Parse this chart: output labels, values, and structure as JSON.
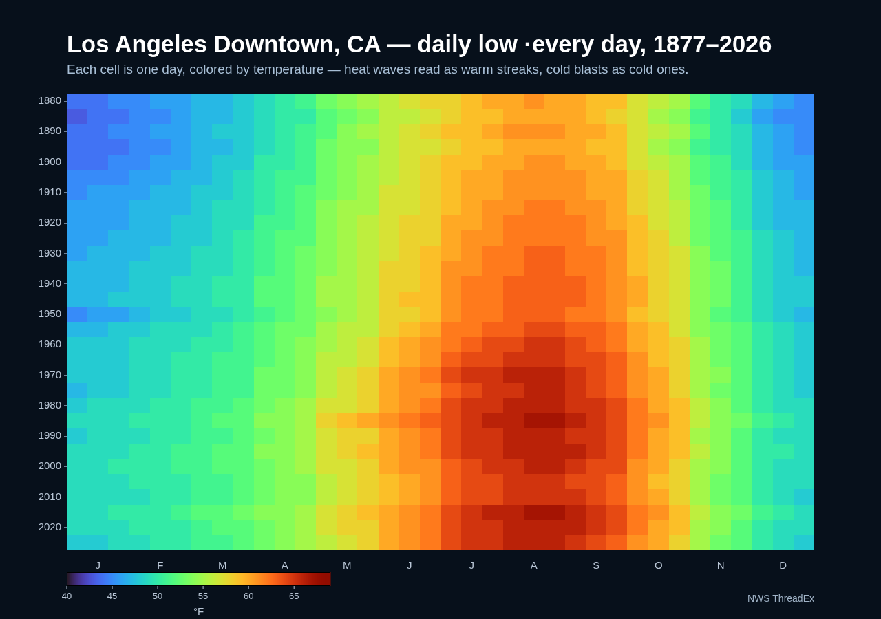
{
  "chart_data": {
    "type": "heatmap",
    "title": "Los Angeles Downtown, CA — daily low ·every day, 1877–2026",
    "subtitle": "Each cell is one day, colored by temperature — heat waves read as warm streaks, cold blasts as cold ones.",
    "categories": [
      null,
      "J",
      null,
      null,
      "F",
      null,
      null,
      "M",
      null,
      null,
      "A",
      null,
      null,
      "M",
      null,
      null,
      "J",
      null,
      null,
      "J",
      null,
      null,
      "A",
      null,
      null,
      "S",
      null,
      null,
      "O",
      null,
      null,
      "N",
      null,
      null,
      "D",
      null
    ],
    "y_categories": [
      "1880",
      null,
      "1890",
      null,
      "1900",
      null,
      "1910",
      null,
      "1920",
      null,
      "1930",
      null,
      "1940",
      null,
      "1950",
      null,
      "1960",
      null,
      "1970",
      null,
      "1980",
      null,
      "1990",
      null,
      "2000",
      null,
      "2010",
      null,
      "2020",
      null
    ],
    "cells": [
      [
        44,
        44,
        45,
        45,
        46,
        46,
        47,
        47,
        48,
        49,
        50,
        51,
        53,
        54,
        55,
        56,
        57,
        58,
        58,
        59,
        60,
        60,
        61,
        60,
        60,
        59,
        59,
        57,
        56,
        55,
        52,
        50,
        49,
        47,
        46,
        45
      ],
      [
        43,
        44,
        44,
        45,
        45,
        46,
        47,
        47,
        48,
        49,
        50,
        50,
        52,
        53,
        54,
        56,
        56,
        57,
        58,
        59,
        59,
        60,
        60,
        60,
        60,
        59,
        58,
        57,
        55,
        54,
        51,
        50,
        48,
        46,
        45,
        45
      ],
      [
        44,
        44,
        45,
        45,
        46,
        46,
        47,
        48,
        48,
        49,
        50,
        51,
        52,
        54,
        55,
        56,
        57,
        58,
        59,
        59,
        60,
        61,
        61,
        61,
        60,
        60,
        59,
        57,
        56,
        55,
        52,
        50,
        49,
        47,
        46,
        45
      ],
      [
        44,
        44,
        44,
        45,
        45,
        46,
        47,
        47,
        48,
        49,
        50,
        51,
        53,
        54,
        54,
        56,
        57,
        57,
        58,
        59,
        59,
        60,
        60,
        60,
        60,
        59,
        59,
        57,
        55,
        54,
        51,
        50,
        49,
        47,
        46,
        45
      ],
      [
        44,
        44,
        45,
        45,
        46,
        46,
        47,
        48,
        48,
        50,
        50,
        51,
        53,
        54,
        55,
        56,
        57,
        58,
        59,
        59,
        60,
        60,
        61,
        61,
        60,
        60,
        59,
        57,
        56,
        55,
        52,
        51,
        49,
        47,
        46,
        46
      ],
      [
        45,
        45,
        45,
        46,
        46,
        47,
        47,
        48,
        49,
        50,
        51,
        51,
        53,
        54,
        55,
        56,
        57,
        58,
        59,
        60,
        60,
        61,
        61,
        61,
        61,
        60,
        60,
        58,
        57,
        55,
        52,
        51,
        50,
        48,
        47,
        46
      ],
      [
        45,
        46,
        46,
        46,
        47,
        47,
        48,
        48,
        49,
        50,
        51,
        52,
        53,
        54,
        55,
        57,
        57,
        58,
        59,
        60,
        60,
        61,
        61,
        61,
        61,
        60,
        60,
        58,
        57,
        55,
        53,
        51,
        50,
        48,
        47,
        46
      ],
      [
        46,
        46,
        46,
        47,
        47,
        47,
        48,
        49,
        49,
        50,
        51,
        52,
        54,
        55,
        55,
        57,
        57,
        58,
        59,
        60,
        61,
        61,
        62,
        62,
        61,
        61,
        60,
        58,
        57,
        56,
        53,
        52,
        50,
        48,
        47,
        47
      ],
      [
        46,
        46,
        46,
        47,
        47,
        48,
        48,
        49,
        49,
        51,
        51,
        52,
        54,
        55,
        56,
        57,
        58,
        58,
        60,
        60,
        61,
        62,
        62,
        62,
        62,
        61,
        60,
        59,
        57,
        56,
        53,
        52,
        50,
        48,
        47,
        47
      ],
      [
        46,
        46,
        47,
        47,
        47,
        48,
        48,
        49,
        50,
        51,
        52,
        52,
        54,
        55,
        56,
        57,
        58,
        58,
        60,
        61,
        61,
        62,
        62,
        62,
        62,
        61,
        61,
        59,
        58,
        56,
        53,
        52,
        51,
        49,
        48,
        47
      ],
      [
        46,
        47,
        47,
        47,
        48,
        48,
        49,
        49,
        50,
        51,
        52,
        53,
        54,
        55,
        56,
        57,
        58,
        59,
        60,
        61,
        62,
        62,
        63,
        63,
        62,
        62,
        61,
        59,
        58,
        57,
        54,
        52,
        51,
        49,
        48,
        47
      ],
      [
        47,
        47,
        47,
        48,
        48,
        48,
        49,
        49,
        50,
        51,
        52,
        53,
        54,
        55,
        56,
        58,
        58,
        59,
        61,
        61,
        62,
        62,
        63,
        63,
        62,
        62,
        61,
        59,
        58,
        57,
        54,
        53,
        51,
        49,
        48,
        47
      ],
      [
        47,
        47,
        47,
        48,
        48,
        49,
        49,
        50,
        50,
        52,
        52,
        53,
        55,
        55,
        56,
        58,
        58,
        59,
        61,
        62,
        62,
        63,
        63,
        63,
        63,
        62,
        61,
        60,
        58,
        57,
        54,
        53,
        51,
        49,
        48,
        48
      ],
      [
        47,
        47,
        48,
        48,
        48,
        49,
        49,
        50,
        50,
        52,
        52,
        53,
        55,
        55,
        56,
        58,
        59,
        59,
        61,
        62,
        62,
        63,
        63,
        63,
        63,
        62,
        61,
        60,
        58,
        57,
        54,
        53,
        51,
        49,
        48,
        48
      ],
      [
        45,
        46,
        46,
        47,
        48,
        48,
        49,
        49,
        50,
        51,
        52,
        53,
        54,
        55,
        56,
        58,
        58,
        59,
        61,
        62,
        62,
        63,
        63,
        63,
        62,
        62,
        61,
        59,
        58,
        57,
        54,
        52,
        51,
        49,
        48,
        47
      ],
      [
        47,
        47,
        48,
        48,
        49,
        49,
        49,
        50,
        51,
        52,
        53,
        53,
        55,
        56,
        56,
        58,
        59,
        60,
        62,
        62,
        63,
        63,
        64,
        64,
        63,
        63,
        62,
        60,
        59,
        57,
        54,
        53,
        52,
        50,
        49,
        48
      ],
      [
        48,
        48,
        48,
        49,
        49,
        49,
        50,
        50,
        51,
        52,
        53,
        54,
        55,
        56,
        57,
        59,
        60,
        61,
        62,
        63,
        64,
        64,
        65,
        65,
        64,
        63,
        62,
        60,
        59,
        58,
        55,
        53,
        52,
        50,
        49,
        48
      ],
      [
        48,
        48,
        48,
        49,
        49,
        50,
        50,
        51,
        51,
        52,
        53,
        54,
        56,
        56,
        57,
        59,
        60,
        61,
        63,
        64,
        64,
        65,
        65,
        65,
        64,
        64,
        63,
        61,
        59,
        58,
        55,
        53,
        52,
        50,
        49,
        48
      ],
      [
        48,
        48,
        48,
        49,
        49,
        50,
        50,
        51,
        51,
        53,
        53,
        54,
        56,
        57,
        58,
        60,
        61,
        62,
        64,
        65,
        65,
        66,
        66,
        66,
        65,
        64,
        63,
        61,
        60,
        58,
        55,
        54,
        52,
        50,
        49,
        48
      ],
      [
        47,
        48,
        48,
        49,
        49,
        50,
        50,
        51,
        51,
        53,
        53,
        54,
        56,
        57,
        58,
        60,
        61,
        61,
        63,
        64,
        65,
        65,
        66,
        66,
        65,
        64,
        63,
        61,
        60,
        58,
        55,
        53,
        52,
        50,
        49,
        48
      ],
      [
        48,
        49,
        49,
        49,
        50,
        50,
        51,
        51,
        52,
        53,
        54,
        55,
        57,
        57,
        58,
        60,
        61,
        62,
        64,
        65,
        65,
        66,
        66,
        66,
        65,
        65,
        64,
        62,
        60,
        59,
        56,
        54,
        52,
        50,
        49,
        49
      ],
      [
        49,
        49,
        49,
        50,
        50,
        50,
        51,
        52,
        52,
        54,
        54,
        55,
        58,
        59,
        60,
        61,
        62,
        63,
        64,
        65,
        66,
        66,
        67,
        67,
        66,
        65,
        64,
        62,
        61,
        59,
        56,
        54,
        53,
        51,
        50,
        49
      ],
      [
        48,
        49,
        49,
        49,
        50,
        50,
        51,
        51,
        52,
        53,
        54,
        55,
        57,
        58,
        58,
        60,
        61,
        62,
        64,
        65,
        65,
        66,
        66,
        66,
        65,
        65,
        64,
        62,
        60,
        59,
        55,
        54,
        52,
        50,
        49,
        49
      ],
      [
        49,
        49,
        49,
        50,
        50,
        51,
        51,
        52,
        52,
        54,
        54,
        55,
        57,
        58,
        59,
        60,
        61,
        62,
        64,
        65,
        65,
        66,
        66,
        66,
        66,
        65,
        64,
        62,
        60,
        59,
        56,
        54,
        52,
        50,
        50,
        49
      ],
      [
        49,
        49,
        50,
        50,
        50,
        51,
        51,
        52,
        52,
        53,
        54,
        55,
        57,
        57,
        58,
        60,
        61,
        61,
        63,
        64,
        65,
        65,
        66,
        66,
        65,
        64,
        64,
        61,
        60,
        58,
        55,
        54,
        52,
        50,
        49,
        49
      ],
      [
        49,
        49,
        49,
        50,
        50,
        50,
        51,
        51,
        52,
        53,
        54,
        54,
        56,
        57,
        58,
        59,
        60,
        61,
        63,
        64,
        64,
        65,
        65,
        65,
        64,
        64,
        63,
        61,
        59,
        58,
        55,
        53,
        52,
        50,
        49,
        49
      ],
      [
        49,
        49,
        49,
        49,
        50,
        50,
        51,
        51,
        52,
        53,
        54,
        54,
        56,
        57,
        58,
        59,
        60,
        61,
        63,
        64,
        64,
        65,
        65,
        65,
        65,
        64,
        63,
        61,
        60,
        58,
        55,
        53,
        52,
        50,
        49,
        48
      ],
      [
        49,
        49,
        50,
        50,
        50,
        51,
        52,
        52,
        53,
        54,
        54,
        55,
        57,
        58,
        59,
        60,
        61,
        62,
        64,
        65,
        66,
        66,
        67,
        67,
        66,
        65,
        64,
        62,
        61,
        59,
        56,
        54,
        53,
        51,
        50,
        49
      ],
      [
        49,
        49,
        49,
        50,
        50,
        50,
        51,
        52,
        52,
        53,
        54,
        55,
        57,
        58,
        58,
        60,
        61,
        62,
        64,
        65,
        65,
        66,
        66,
        66,
        66,
        65,
        64,
        62,
        60,
        59,
        55,
        54,
        52,
        50,
        49,
        49
      ],
      [
        48,
        48,
        49,
        49,
        50,
        50,
        51,
        51,
        52,
        53,
        54,
        55,
        56,
        57,
        58,
        60,
        61,
        62,
        64,
        65,
        65,
        66,
        66,
        66,
        65,
        64,
        63,
        61,
        60,
        58,
        55,
        53,
        52,
        50,
        49,
        48
      ]
    ],
    "clim": [
      40,
      69
    ],
    "cticks": [
      40,
      45,
      50,
      55,
      60,
      65
    ],
    "clabel": "°F",
    "annotations": [
      "NWS ThreadEx"
    ]
  }
}
